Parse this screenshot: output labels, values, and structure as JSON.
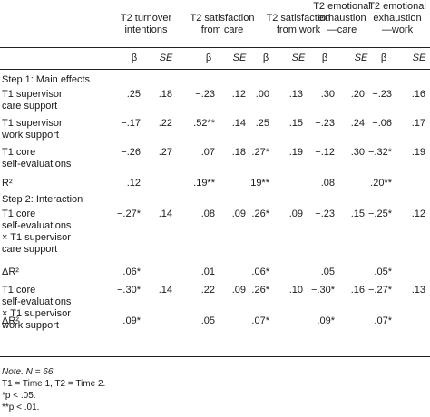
{
  "headers": [
    {
      "line1": "T2 turnover",
      "line2": "intentions"
    },
    {
      "line1": "T2 satisfaction",
      "line2": "from care"
    },
    {
      "line1": "T2 satisfaction",
      "line2": "from work"
    },
    {
      "line1": "T2 emotional",
      "line2": "exhaustion",
      "line3": "—care"
    },
    {
      "line1": "T2 emotional",
      "line2": "exhaustion",
      "line3": "—work"
    }
  ],
  "subheaders": {
    "beta": "β",
    "se": "SE"
  },
  "rows": [
    {
      "label": [
        "Step 1: Main effects"
      ],
      "values": []
    },
    {
      "label": [
        "T1 supervisor",
        "care support"
      ],
      "values": [
        ".25",
        ".18",
        "−.23",
        ".12",
        ".00",
        ".13",
        ".30",
        ".20",
        "−.23",
        ".16"
      ]
    },
    {
      "label": [
        "T1 supervisor",
        "work support"
      ],
      "values": [
        "−.17",
        ".22",
        ".52**",
        ".14",
        ".25",
        ".15",
        "−.23",
        ".24",
        "−.06",
        ".17"
      ]
    },
    {
      "label": [
        "T1 core",
        "self-evaluations"
      ],
      "values": [
        "−.26",
        ".27",
        ".07",
        ".18",
        ".27*",
        ".19",
        "−.12",
        ".30",
        "−.32*",
        ".19"
      ]
    },
    {
      "label": [
        "R²"
      ],
      "values": [
        ".12",
        "",
        ".19**",
        "",
        ".19**",
        "",
        ".08",
        "",
        ".20**",
        ""
      ]
    },
    {
      "label": [
        "Step 2: Interaction"
      ],
      "values": []
    },
    {
      "label": [
        "T1 core",
        "self-evaluations",
        "× T1 supervisor",
        "care support"
      ],
      "values": [
        "−.27*",
        ".14",
        ".08",
        ".09",
        ".26*",
        ".09",
        "−.23",
        ".15",
        "−.25*",
        ".12"
      ]
    },
    {
      "label": [
        "ΔR²"
      ],
      "values": [
        ".06*",
        "",
        ".01",
        "",
        ".06*",
        "",
        ".05",
        "",
        ".05*",
        ""
      ]
    },
    {
      "label": [
        "T1 core",
        "self-evaluations",
        "× T1 supervisor",
        "work support"
      ],
      "values": [
        "−.30*",
        ".14",
        ".22",
        ".09",
        ".26*",
        ".10",
        "−.30*",
        ".16",
        "−.27*",
        ".13"
      ]
    },
    {
      "label": [
        "ΔR²"
      ],
      "values": [
        ".09*",
        "",
        ".05",
        "",
        ".07*",
        "",
        ".09*",
        "",
        ".07*",
        ""
      ]
    }
  ],
  "notes": [
    "Note. N = 66.",
    "T1 = Time 1, T2 = Time 2.",
    "*p < .05.",
    "**p < .01."
  ]
}
